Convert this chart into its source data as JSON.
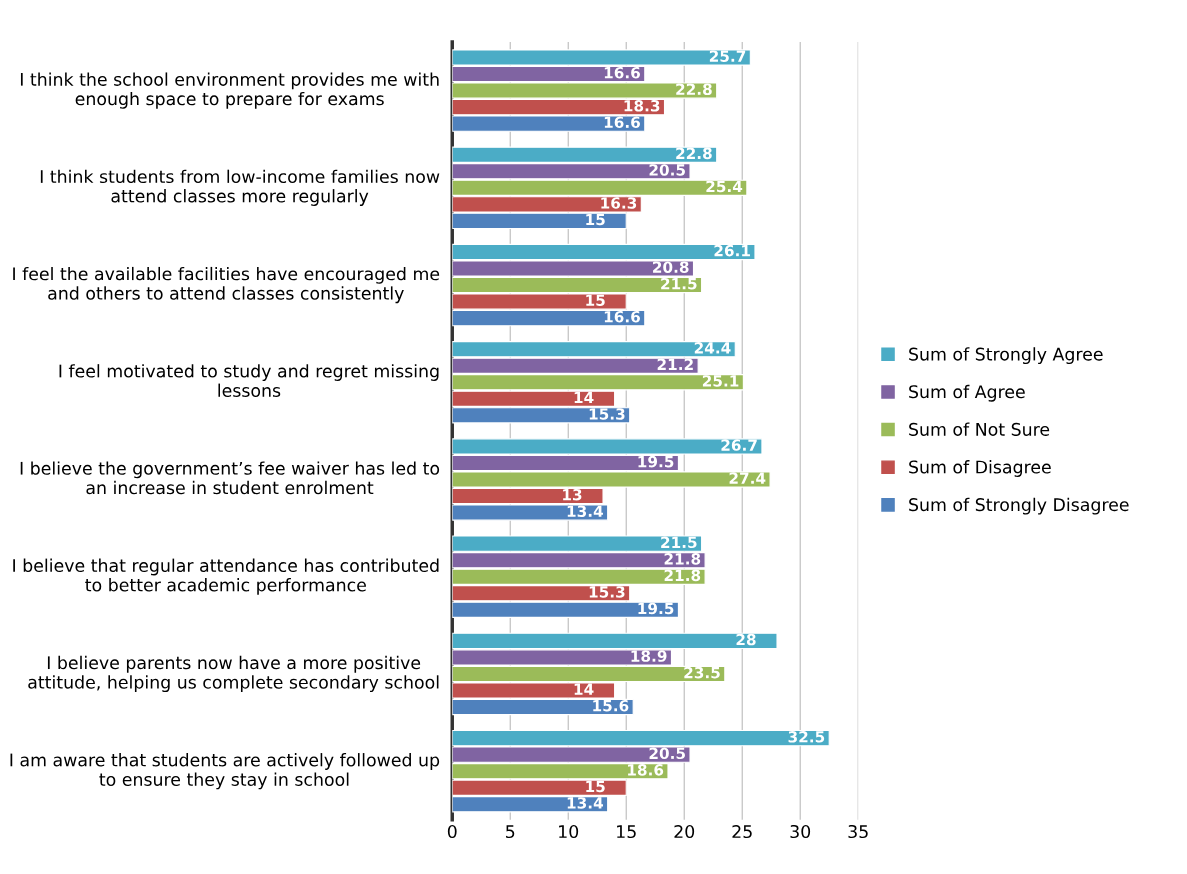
{
  "chart_data": {
    "type": "bar",
    "orientation": "horizontal",
    "categories": [
      "I think the school environment provides me with enough space to prepare for exams",
      "I think students from low-income families now attend classes more regularly",
      "I feel the available facilities have encouraged me and others to attend classes consistently",
      "I feel motivated to study and regret missing lessons",
      "I believe the government’s fee waiver has led to an increase in student enrolment",
      "I believe that regular attendance has contributed to better academic performance",
      "I believe parents now have a more positive attitude, helping us complete secondary school",
      "I am aware that students are actively followed up to ensure they stay in school"
    ],
    "series": [
      {
        "name": "Sum of Strongly Agree",
        "color": "#4bacc6",
        "values": [
          25.7,
          22.8,
          26.1,
          24.4,
          26.7,
          21.5,
          28,
          32.5
        ]
      },
      {
        "name": "Sum of Agree",
        "color": "#8064a2",
        "values": [
          16.6,
          20.5,
          20.8,
          21.2,
          19.5,
          21.8,
          18.9,
          20.5
        ]
      },
      {
        "name": "Sum of Not Sure",
        "color": "#9bbb59",
        "values": [
          22.8,
          25.4,
          21.5,
          25.1,
          27.4,
          21.8,
          23.5,
          18.6
        ]
      },
      {
        "name": "Sum of Disagree",
        "color": "#c0504d",
        "values": [
          18.3,
          16.3,
          15,
          14,
          13,
          15.3,
          14,
          15
        ]
      },
      {
        "name": "Sum of Strongly Disagree",
        "color": "#4f81bd",
        "values": [
          16.6,
          15,
          16.6,
          15.3,
          13.4,
          19.5,
          15.6,
          13.4
        ]
      }
    ],
    "xlim": [
      0,
      35
    ],
    "xticks": [
      0,
      5,
      10,
      15,
      20,
      25,
      30,
      35
    ],
    "grid": "x",
    "legend": "right",
    "data_labels": true
  }
}
